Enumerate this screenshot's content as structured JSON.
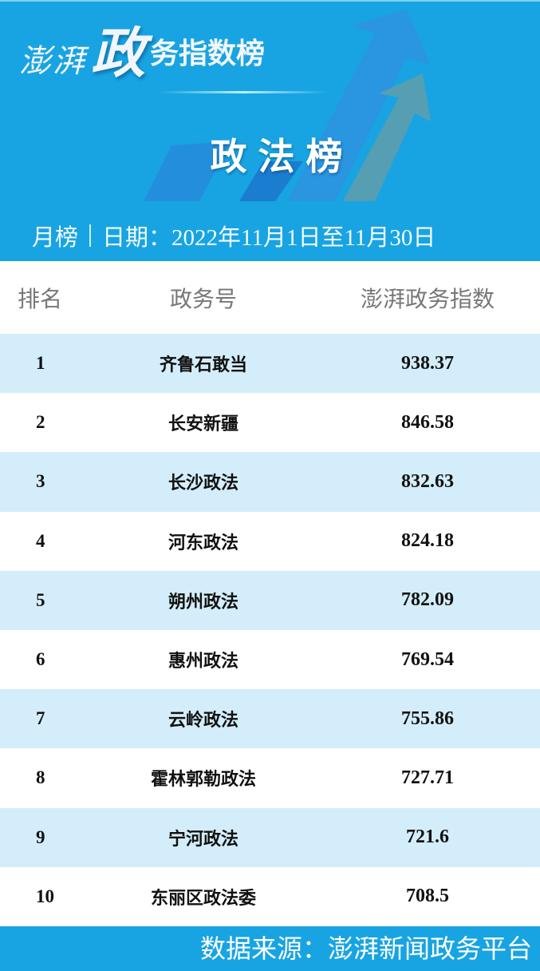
{
  "header": {
    "brand_part1": "澎湃",
    "brand_part2": "政",
    "brand_part3": "务指数榜",
    "title": "政法榜",
    "period": "月榜",
    "date": "日期：2022年11月1日至11月30日",
    "background_color": "#18a4e2"
  },
  "table": {
    "columns": [
      "排名",
      "政务号",
      "澎湃政务指数"
    ],
    "rows": [
      {
        "rank": "1",
        "name": "齐鲁石敢当",
        "score": "938.37"
      },
      {
        "rank": "2",
        "name": "长安新疆",
        "score": "846.58"
      },
      {
        "rank": "3",
        "name": "长沙政法",
        "score": "832.63"
      },
      {
        "rank": "4",
        "name": "河东政法",
        "score": "824.18"
      },
      {
        "rank": "5",
        "name": "朔州政法",
        "score": "782.09"
      },
      {
        "rank": "6",
        "name": "惠州政法",
        "score": "769.54"
      },
      {
        "rank": "7",
        "name": "云岭政法",
        "score": "755.86"
      },
      {
        "rank": "8",
        "name": "霍林郭勒政法",
        "score": "727.71"
      },
      {
        "rank": "9",
        "name": "宁河政法",
        "score": "721.6"
      },
      {
        "rank": "10",
        "name": "东丽区政法委",
        "score": "708.5"
      }
    ],
    "stripe_color": "#d3eefa"
  },
  "footer": {
    "source": "数据来源：澎湃新闻政务平台"
  }
}
